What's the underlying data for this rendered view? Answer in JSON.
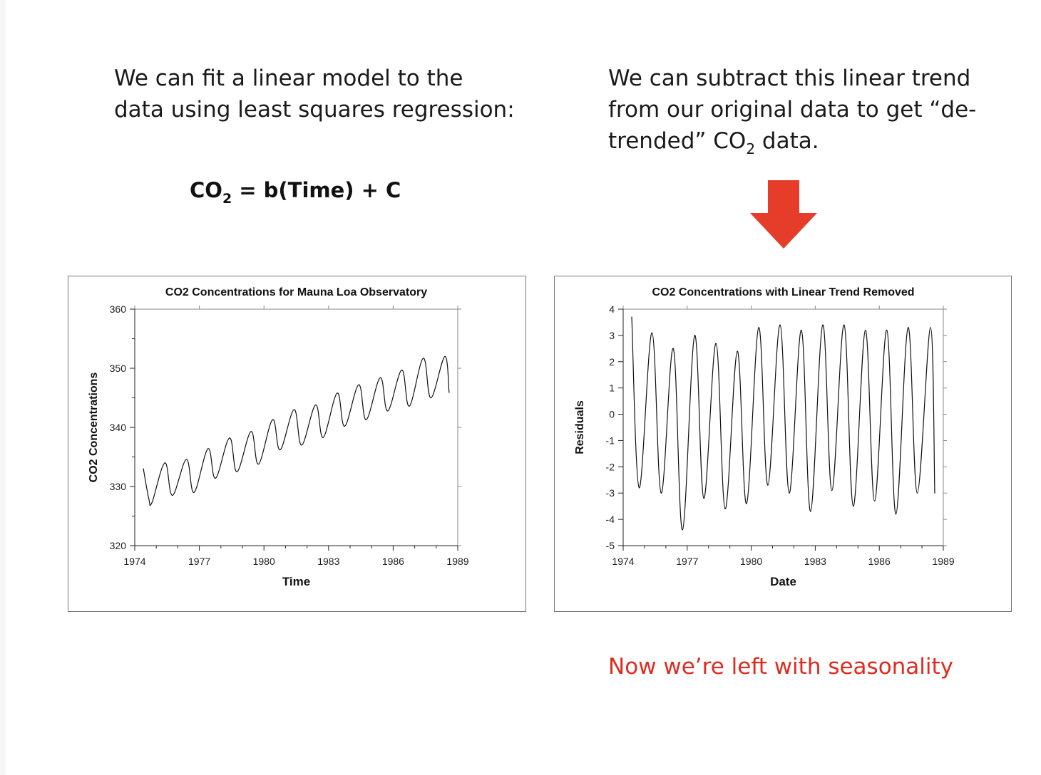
{
  "left_text": {
    "line1": "We can fit a linear model to the",
    "line2": "data using least squares regression:"
  },
  "right_text": {
    "line1": "We can subtract this linear trend",
    "line2": "from our original data to get “de-",
    "line3_a": "trended” CO",
    "line3_sub": "2",
    "line3_b": " data."
  },
  "equation": {
    "lhs": "CO",
    "lhs_sub": "2",
    "rhs": " = b(Time) + C"
  },
  "arrow": {
    "icon": "down-arrow-icon",
    "color": "#e63c2a"
  },
  "conclusion": {
    "text": "Now we’re left with seasonality",
    "color": "#e02b20"
  },
  "chart_data": [
    {
      "type": "line",
      "title": "CO2 Concentrations for Mauna Loa Observatory",
      "xlabel": "Time",
      "ylabel": "CO2 Concentrations",
      "xlim": [
        1974,
        1989
      ],
      "ylim": [
        320,
        360
      ],
      "xticks": [
        "1974",
        "1977",
        "1980",
        "1983",
        "1986",
        "1989"
      ],
      "yticks": [
        "320",
        "330",
        "340",
        "350",
        "360"
      ],
      "series": [
        {
          "x": [
            1974.4,
            1974.65,
            1974.8,
            1975.4,
            1975.75,
            1976.4,
            1976.75,
            1977.4,
            1977.75,
            1978.4,
            1978.75,
            1979.4,
            1979.75,
            1980.4,
            1980.75,
            1981.4,
            1981.75,
            1982.4,
            1982.75,
            1983.4,
            1983.75,
            1984.4,
            1984.75,
            1985.4,
            1985.75,
            1986.4,
            1986.75,
            1987.4,
            1987.75,
            1988.4,
            1988.6
          ],
          "y": [
            333,
            328,
            327.3,
            334,
            328.5,
            334.6,
            329,
            336.4,
            331.4,
            338.2,
            332.5,
            339.3,
            333.8,
            341.3,
            336.2,
            343,
            337,
            343.8,
            338.3,
            345.8,
            340.2,
            347.2,
            341.3,
            348.4,
            342.8,
            349.7,
            343.6,
            351.7,
            345,
            352,
            345.9
          ]
        }
      ]
    },
    {
      "type": "line",
      "title": "CO2 Concentrations with Linear Trend Removed",
      "xlabel": "Date",
      "ylabel": "Residuals",
      "xlim": [
        1974,
        1989
      ],
      "ylim": [
        -5,
        4
      ],
      "xticks": [
        "1974",
        "1977",
        "1980",
        "1983",
        "1986",
        "1989"
      ],
      "yticks": [
        "-5",
        "-4",
        "-3",
        "-2",
        "-1",
        "0",
        "1",
        "2",
        "3",
        "4"
      ],
      "series": [
        {
          "x": [
            1974.4,
            1974.75,
            1975.35,
            1975.78,
            1976.35,
            1976.78,
            1977.35,
            1977.78,
            1978.35,
            1978.78,
            1979.35,
            1979.78,
            1980.35,
            1980.78,
            1981.35,
            1981.78,
            1982.35,
            1982.78,
            1983.35,
            1983.78,
            1984.35,
            1984.78,
            1985.35,
            1985.78,
            1986.35,
            1986.78,
            1987.35,
            1987.78,
            1988.4,
            1988.6
          ],
          "y": [
            3.7,
            -2.8,
            3.1,
            -3,
            2.5,
            -4.4,
            3.0,
            -3.2,
            2.7,
            -3.6,
            2.4,
            -3.4,
            3.3,
            -2.7,
            3.4,
            -3.0,
            3.2,
            -3.7,
            3.4,
            -2.9,
            3.4,
            -3.5,
            3.2,
            -3.3,
            3.2,
            -3.8,
            3.3,
            -3.0,
            3.3,
            -3.0
          ]
        }
      ]
    }
  ]
}
